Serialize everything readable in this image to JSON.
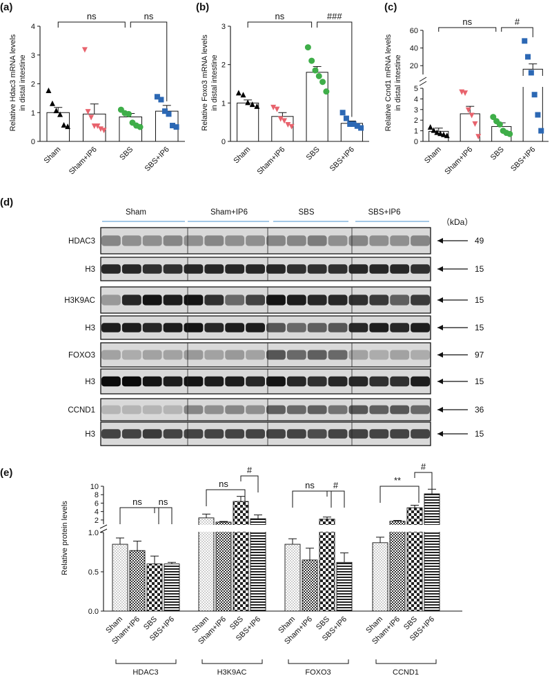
{
  "panel_labels": {
    "a": "(a)",
    "b": "(b)",
    "c": "(c)",
    "d": "(d)",
    "e": "(e)"
  },
  "colors": {
    "sham": "#000000",
    "sham_ip6": "#e8636d",
    "sbs": "#3fae49",
    "sbs_ip6": "#2c68b4"
  },
  "chart_data": [
    {
      "id": "a",
      "type": "scatter-bar",
      "ylabel_line1": "Relative Hdac3 mRNA levels",
      "ylabel_line2": "in distal intestine",
      "categories": [
        "Sham",
        "Sham+IP6",
        "SBS",
        "SBS+IP6"
      ],
      "ylim": [
        0,
        4
      ],
      "yticks": [
        "0",
        "1",
        "2",
        "3",
        "4"
      ],
      "means": [
        1.0,
        0.95,
        0.85,
        1.05
      ],
      "sem": [
        0.18,
        0.35,
        0.12,
        0.2
      ],
      "points": [
        [
          1.75,
          1.3,
          1.05,
          0.92,
          0.55,
          0.5
        ],
        [
          3.2,
          1.05,
          0.85,
          0.55,
          0.55,
          0.45,
          0.4
        ],
        [
          1.1,
          0.98,
          0.95,
          0.65,
          0.55,
          0.5
        ],
        [
          1.55,
          1.45,
          1.05,
          0.95,
          0.55,
          0.5
        ]
      ],
      "markers": [
        "triangle",
        "triangle-down",
        "circle",
        "square"
      ],
      "comparisons": [
        {
          "from": 0,
          "to": 2,
          "label": "ns"
        },
        {
          "from": 2,
          "to": 3,
          "label": "ns"
        }
      ]
    },
    {
      "id": "b",
      "type": "scatter-bar",
      "ylabel_line1": "Relative Foxo3 mRNA levels",
      "ylabel_line2": "in distal intestine",
      "categories": [
        "Sham",
        "Sham+IP6",
        "SBS",
        "SBS+IP6"
      ],
      "ylim": [
        0,
        3
      ],
      "yticks": [
        "0",
        "1",
        "2",
        "3"
      ],
      "means": [
        1.0,
        0.65,
        1.8,
        0.47
      ],
      "sem": [
        0.08,
        0.1,
        0.15,
        0.06
      ],
      "points": [
        [
          1.25,
          1.2,
          1.0,
          0.95,
          0.9
        ],
        [
          0.9,
          0.85,
          0.6,
          0.55,
          0.45,
          0.4
        ],
        [
          2.45,
          2.1,
          1.85,
          1.7,
          1.55,
          1.3
        ],
        [
          0.75,
          0.6,
          0.45,
          0.45,
          0.4,
          0.35
        ]
      ],
      "markers": [
        "triangle",
        "triangle-down",
        "circle",
        "square"
      ],
      "comparisons": [
        {
          "from": 0,
          "to": 2,
          "label": "ns"
        },
        {
          "from": 2,
          "to": 3,
          "label": "###"
        }
      ]
    },
    {
      "id": "c",
      "type": "scatter-bar-broken",
      "ylabel_line1": "Relative Ccnd1 mRNA levels",
      "ylabel_line2": "in distal intestine",
      "categories": [
        "Sham",
        "Sham+IP6",
        "SBS",
        "SBS+IP6"
      ],
      "yticks_low": [
        "0",
        "1",
        "2",
        "3",
        "4",
        "5"
      ],
      "yticks_high": [
        "20",
        "40",
        "60"
      ],
      "means": [
        0.95,
        2.6,
        1.4,
        16
      ],
      "sem": [
        0.3,
        0.7,
        0.35,
        6
      ],
      "points": [
        [
          1.3,
          1.0,
          0.8,
          0.7,
          0.6,
          0.5
        ],
        [
          4.7,
          4.6,
          3.0,
          2.5,
          1.7,
          0.5
        ],
        [
          2.3,
          1.9,
          1.6,
          1.0,
          0.8,
          0.7
        ],
        [
          48,
          30,
          12,
          4.4,
          2.5,
          1.0
        ]
      ],
      "markers": [
        "triangle",
        "triangle-down",
        "circle",
        "square"
      ],
      "comparisons": [
        {
          "from": 0,
          "to": 2,
          "label": "ns"
        },
        {
          "from": 2,
          "to": 3,
          "label": "#"
        }
      ]
    },
    {
      "id": "e",
      "type": "bar-broken",
      "ylabel": "Relative protein levels",
      "yticks_low": [
        "0.0",
        "0.5",
        "1.0"
      ],
      "yticks_high": [
        "2",
        "4",
        "6",
        "8",
        "10"
      ],
      "group_conditions": [
        "Sham",
        "Sham+IP6",
        "SBS",
        "SBS+IP6"
      ],
      "groups": [
        {
          "name": "HDAC3",
          "values": [
            0.85,
            0.77,
            0.6,
            0.6
          ],
          "sem": [
            0.08,
            0.12,
            0.1,
            0.02
          ],
          "comparisons": [
            {
              "from": 0,
              "to": 2,
              "label": "ns"
            },
            {
              "from": 2,
              "to": 3,
              "label": "ns"
            }
          ]
        },
        {
          "name": "H3K9AC",
          "values": [
            2.5,
            1.5,
            6.4,
            2.3
          ],
          "sem": [
            0.9,
            0.15,
            1.2,
            0.9
          ],
          "comparisons": [
            {
              "from": 0,
              "to": 2,
              "label": "ns"
            },
            {
              "from": 2,
              "to": 3,
              "label": "#"
            }
          ]
        },
        {
          "name": "FOXO3",
          "values": [
            0.85,
            0.65,
            2.2,
            0.62
          ],
          "sem": [
            0.07,
            0.15,
            0.5,
            0.12
          ],
          "comparisons": [
            {
              "from": 0,
              "to": 2,
              "label": "ns"
            },
            {
              "from": 2,
              "to": 3,
              "label": "#"
            }
          ]
        },
        {
          "name": "CCND1",
          "values": [
            0.87,
            1.7,
            4.9,
            8.2
          ],
          "sem": [
            0.07,
            0.2,
            0.6,
            1.1
          ],
          "comparisons": [
            {
              "from": 0,
              "to": 2,
              "label": "**"
            },
            {
              "from": 2,
              "to": 3,
              "label": "#"
            }
          ]
        }
      ]
    }
  ],
  "western": {
    "groups": [
      "Sham",
      "Sham+IP6",
      "SBS",
      "SBS+IP6"
    ],
    "kda_label": "（kDa）",
    "blots": [
      {
        "label": "HDAC3",
        "kda": "49"
      },
      {
        "label": "H3",
        "kda": "15"
      },
      {
        "label": "H3K9AC",
        "kda": "15"
      },
      {
        "label": "H3",
        "kda": "15"
      },
      {
        "label": "FOXO3",
        "kda": "97"
      },
      {
        "label": "H3",
        "kda": "15"
      },
      {
        "label": "CCND1",
        "kda": "36"
      },
      {
        "label": "H3",
        "kda": "15"
      }
    ]
  }
}
